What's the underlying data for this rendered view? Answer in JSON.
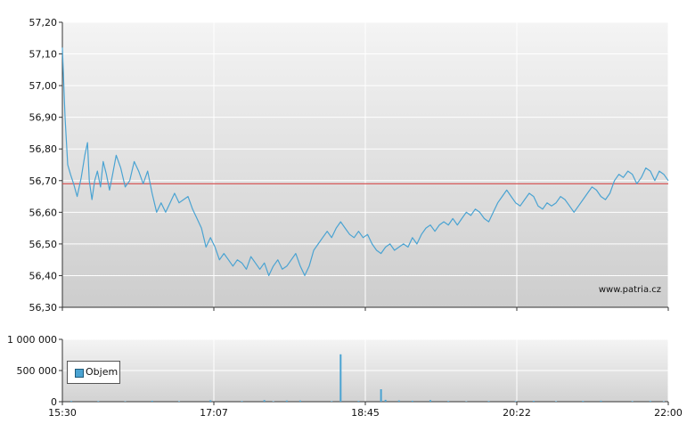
{
  "chart_data": [
    {
      "type": "line",
      "series": [
        {
          "values": [
            [
              0.0,
              57.12
            ],
            [
              0.6,
              56.9
            ],
            [
              1.2,
              56.75
            ],
            [
              1.8,
              56.72
            ],
            [
              2.5,
              56.69
            ],
            [
              3.3,
              56.65
            ],
            [
              4.2,
              56.71
            ],
            [
              5.0,
              56.78
            ],
            [
              5.6,
              56.82
            ],
            [
              6.0,
              56.7
            ],
            [
              6.6,
              56.64
            ],
            [
              7.2,
              56.7
            ],
            [
              7.8,
              56.73
            ],
            [
              8.5,
              56.68
            ],
            [
              9.1,
              56.76
            ],
            [
              9.8,
              56.72
            ],
            [
              10.5,
              56.67
            ],
            [
              11.2,
              56.72
            ],
            [
              12.0,
              56.78
            ],
            [
              13.0,
              56.74
            ],
            [
              14.0,
              56.68
            ],
            [
              15.0,
              56.7
            ],
            [
              16.0,
              56.76
            ],
            [
              17.0,
              56.73
            ],
            [
              18.0,
              56.69
            ],
            [
              19.0,
              56.73
            ],
            [
              20.0,
              56.66
            ],
            [
              21.0,
              56.6
            ],
            [
              22.0,
              56.63
            ],
            [
              23.0,
              56.6
            ],
            [
              24.0,
              56.63
            ],
            [
              25.0,
              56.66
            ],
            [
              26.0,
              56.63
            ],
            [
              27.0,
              56.64
            ],
            [
              28.0,
              56.65
            ],
            [
              29.0,
              56.61
            ],
            [
              30.0,
              56.58
            ],
            [
              31.0,
              56.55
            ],
            [
              32.0,
              56.49
            ],
            [
              33.0,
              56.52
            ],
            [
              34.0,
              56.49
            ],
            [
              35.0,
              56.45
            ],
            [
              36.0,
              56.47
            ],
            [
              37.0,
              56.45
            ],
            [
              38.0,
              56.43
            ],
            [
              39.0,
              56.45
            ],
            [
              40.0,
              56.44
            ],
            [
              41.0,
              56.42
            ],
            [
              42.0,
              56.46
            ],
            [
              43.0,
              56.44
            ],
            [
              44.0,
              56.42
            ],
            [
              45.0,
              56.44
            ],
            [
              46.0,
              56.4
            ],
            [
              47.0,
              56.43
            ],
            [
              48.0,
              56.45
            ],
            [
              49.0,
              56.42
            ],
            [
              50.0,
              56.43
            ],
            [
              51.0,
              56.45
            ],
            [
              52.0,
              56.47
            ],
            [
              53.0,
              56.43
            ],
            [
              54.0,
              56.4
            ],
            [
              55.0,
              56.43
            ],
            [
              56.0,
              56.48
            ],
            [
              57.0,
              56.5
            ],
            [
              58.0,
              56.52
            ],
            [
              59.0,
              56.54
            ],
            [
              60.0,
              56.52
            ],
            [
              61.0,
              56.55
            ],
            [
              62.0,
              56.57
            ],
            [
              63.0,
              56.55
            ],
            [
              64.0,
              56.53
            ],
            [
              65.0,
              56.52
            ],
            [
              66.0,
              56.54
            ],
            [
              67.0,
              56.52
            ],
            [
              68.0,
              56.53
            ],
            [
              69.0,
              56.5
            ],
            [
              70.0,
              56.48
            ],
            [
              71.0,
              56.47
            ],
            [
              72.0,
              56.49
            ],
            [
              73.0,
              56.5
            ],
            [
              74.0,
              56.48
            ],
            [
              75.0,
              56.49
            ],
            [
              76.0,
              56.5
            ],
            [
              77.0,
              56.49
            ],
            [
              78.0,
              56.52
            ],
            [
              79.0,
              56.5
            ],
            [
              80.0,
              56.53
            ],
            [
              81.0,
              56.55
            ],
            [
              82.0,
              56.56
            ],
            [
              83.0,
              56.54
            ],
            [
              84.0,
              56.56
            ],
            [
              85.0,
              56.57
            ],
            [
              86.0,
              56.56
            ],
            [
              87.0,
              56.58
            ],
            [
              88.0,
              56.56
            ],
            [
              89.0,
              56.58
            ],
            [
              90.0,
              56.6
            ],
            [
              91.0,
              56.59
            ],
            [
              92.0,
              56.61
            ],
            [
              93.0,
              56.6
            ],
            [
              94.0,
              56.58
            ],
            [
              95.0,
              56.57
            ],
            [
              96.0,
              56.6
            ],
            [
              97.0,
              56.63
            ],
            [
              98.0,
              56.65
            ],
            [
              99.0,
              56.67
            ],
            [
              100.0,
              56.65
            ],
            [
              101.0,
              56.63
            ],
            [
              102.0,
              56.62
            ],
            [
              103.0,
              56.64
            ],
            [
              104.0,
              56.66
            ],
            [
              105.0,
              56.65
            ],
            [
              106.0,
              56.62
            ],
            [
              107.0,
              56.61
            ],
            [
              108.0,
              56.63
            ],
            [
              109.0,
              56.62
            ],
            [
              110.0,
              56.63
            ],
            [
              111.0,
              56.65
            ],
            [
              112.0,
              56.64
            ],
            [
              113.0,
              56.62
            ],
            [
              114.0,
              56.6
            ],
            [
              115.0,
              56.62
            ],
            [
              116.0,
              56.64
            ],
            [
              117.0,
              56.66
            ],
            [
              118.0,
              56.68
            ],
            [
              119.0,
              56.67
            ],
            [
              120.0,
              56.65
            ],
            [
              121.0,
              56.64
            ],
            [
              122.0,
              56.66
            ],
            [
              123.0,
              56.7
            ],
            [
              124.0,
              56.72
            ],
            [
              125.0,
              56.71
            ],
            [
              126.0,
              56.73
            ],
            [
              127.0,
              56.72
            ],
            [
              128.0,
              56.69
            ],
            [
              129.0,
              56.71
            ],
            [
              130.0,
              56.74
            ],
            [
              131.0,
              56.73
            ],
            [
              132.0,
              56.7
            ],
            [
              133.0,
              56.73
            ],
            [
              134.0,
              56.72
            ],
            [
              135.0,
              56.7
            ]
          ]
        },
        {
          "values": [
            [
              0,
              56.69
            ],
            [
              135,
              56.69
            ]
          ]
        }
      ],
      "ylim": [
        56.3,
        57.2
      ],
      "y_ticks": [
        "57,20",
        "57,10",
        "57,00",
        "56,90",
        "56,80",
        "56,70",
        "56,60",
        "56,50",
        "56,40",
        "56,30"
      ],
      "x_ticks": [
        "15:30",
        "17:07",
        "18:45",
        "20:22",
        "22:00"
      ],
      "annotation": "www.patria.cz",
      "grid": true,
      "colors": {
        "price": "#4aa3d2",
        "reference": "#d64a4a",
        "plot_bg_top": "#f4f4f4",
        "plot_bg_bottom": "#cdcdcd"
      }
    },
    {
      "type": "bar",
      "series": [
        {
          "name": "Objem",
          "values": [
            [
              2,
              12000
            ],
            [
              8,
              9000
            ],
            [
              14,
              6000
            ],
            [
              20,
              15000
            ],
            [
              26,
              8000
            ],
            [
              33,
              22000
            ],
            [
              40,
              10000
            ],
            [
              47,
              7000
            ],
            [
              53,
              18000
            ],
            [
              60,
              9000
            ],
            [
              66,
              12000
            ],
            [
              72,
              30000
            ],
            [
              78,
              15000
            ],
            [
              86,
              11000
            ],
            [
              90,
              6000
            ],
            [
              95,
              10000
            ],
            [
              101,
              9000
            ],
            [
              105,
              14000
            ],
            [
              110,
              8000
            ],
            [
              116,
              12000
            ],
            [
              120,
              16000
            ],
            [
              127,
              9000
            ],
            [
              131,
              12000
            ],
            [
              134,
              7000
            ],
            [
              62,
              760000
            ],
            [
              71,
              200000
            ],
            [
              45,
              25000
            ],
            [
              50,
              18000
            ],
            [
              75,
              20000
            ],
            [
              82,
              25000
            ]
          ]
        }
      ],
      "ylim": [
        0,
        1000000
      ],
      "y_ticks": [
        "1 000 000",
        "500 000",
        "0"
      ],
      "legend": "left inside",
      "colors": {
        "bars": "#4aa3d2"
      }
    }
  ]
}
